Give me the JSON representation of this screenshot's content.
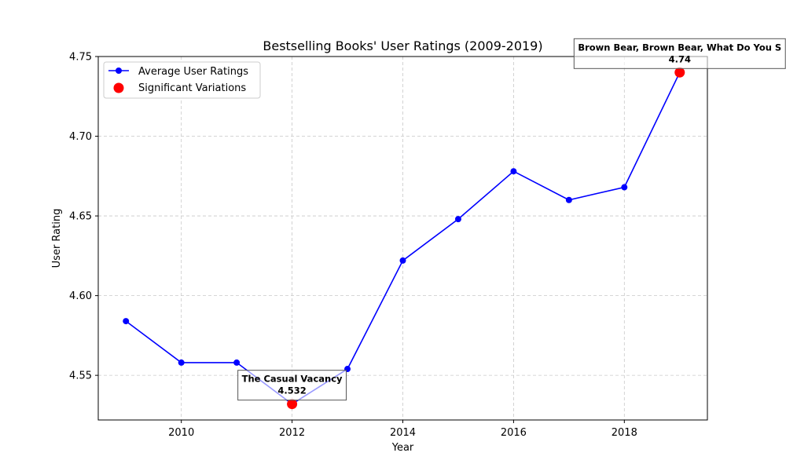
{
  "chart_data": {
    "type": "line",
    "title": "Bestselling Books' User Ratings (2009-2019)",
    "xlabel": "Year",
    "ylabel": "User Rating",
    "x": [
      2009,
      2010,
      2011,
      2012,
      2013,
      2014,
      2015,
      2016,
      2017,
      2018,
      2019
    ],
    "xlim": [
      2008.5,
      2019.5
    ],
    "ylim": [
      4.522,
      4.75
    ],
    "xticks": [
      2010,
      2012,
      2014,
      2016,
      2018
    ],
    "yticks": [
      4.55,
      4.6,
      4.65,
      4.7,
      4.75
    ],
    "ytick_labels": [
      "4.55",
      "4.60",
      "4.65",
      "4.70",
      "4.75"
    ],
    "grid": true,
    "legend_position": "upper-left",
    "series": [
      {
        "name": "Average User Ratings",
        "color": "#0000ff",
        "values": [
          4.584,
          4.558,
          4.558,
          4.532,
          4.554,
          4.622,
          4.648,
          4.678,
          4.66,
          4.668,
          4.74
        ]
      },
      {
        "name": "Significant Variations",
        "color": "#ff0000",
        "points": [
          {
            "x": 2012,
            "y": 4.532
          },
          {
            "x": 2019,
            "y": 4.74
          }
        ]
      }
    ],
    "annotations": [
      {
        "x": 2012,
        "y": 4.532,
        "label": "The Casual Vacancy",
        "value": "4.532"
      },
      {
        "x": 2019,
        "y": 4.74,
        "label": "Brown Bear, Brown Bear, What Do You S",
        "value": "4.74"
      }
    ]
  }
}
